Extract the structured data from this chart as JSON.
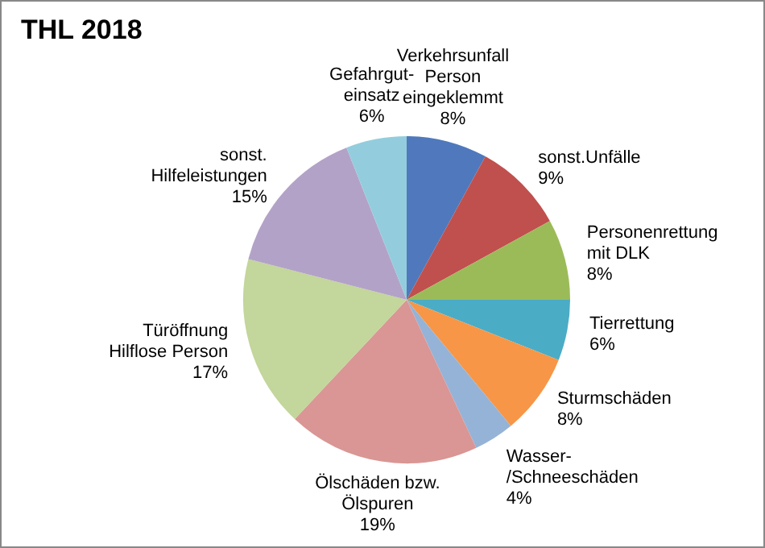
{
  "chart_data": {
    "type": "pie",
    "title": "THL 2018",
    "categories": [
      "Verkehrsunfall\nPerson\neingeklemmt",
      "sonst.Unfälle",
      "Personenrettung\nmit DLK",
      "Tierrettung",
      "Sturmschäden",
      "Wasser-\n/Schneeschäden",
      "Ölschäden bzw.\nÖlspuren",
      "Türöffnung\nHilflose Person",
      "sonst.\nHilfeleistungen",
      "Gefahrgut-\neinsatz"
    ],
    "values": [
      8,
      9,
      8,
      6,
      8,
      4,
      19,
      17,
      15,
      6
    ],
    "value_labels": [
      "8%",
      "9%",
      "8%",
      "6%",
      "8%",
      "4%",
      "19%",
      "17%",
      "15%",
      "6%"
    ],
    "colors": [
      "#4f79bc",
      "#c0504d",
      "#9bbb59",
      "#4bacc6",
      "#f79646",
      "#95b3d7",
      "#d99694",
      "#c3d69b",
      "#b3a2c7",
      "#93cddd"
    ],
    "legend": false
  }
}
